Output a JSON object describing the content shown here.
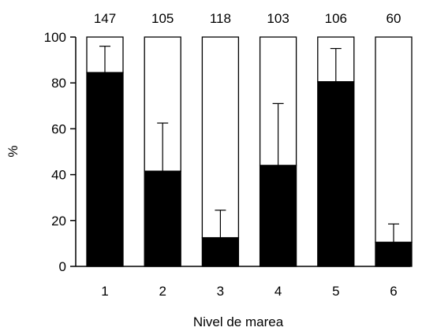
{
  "chart_data": {
    "type": "bar",
    "stacked_to_100": true,
    "categories": [
      "1",
      "2",
      "3",
      "4",
      "5",
      "6"
    ],
    "top_labels": [
      "147",
      "105",
      "118",
      "103",
      "106",
      "60"
    ],
    "values": [
      84.5,
      41.5,
      12.5,
      44,
      80.5,
      10.5
    ],
    "error_upper": [
      96,
      62.5,
      24.5,
      71,
      95,
      18.5
    ],
    "ylim": [
      0,
      100
    ],
    "yticks": [
      "0",
      "20",
      "40",
      "60",
      "80",
      "100"
    ],
    "xlabel": "Nivel de marea",
    "ylabel": "%",
    "fill_color": "#000000",
    "remainder_color": "#ffffff",
    "grid": false,
    "legend": "none"
  }
}
